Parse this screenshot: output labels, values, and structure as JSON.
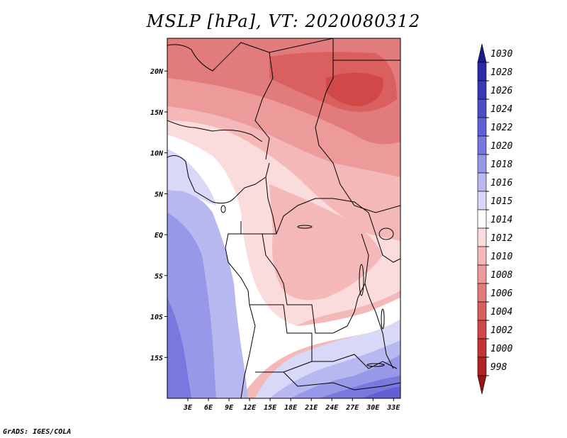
{
  "title": "MSLP [hPa], VT: 2020080312",
  "credit": "GrADS: IGES/COLA",
  "map": {
    "lon_range": [
      0,
      34
    ],
    "lat_range": [
      -20,
      24
    ],
    "lon_ticks": [
      "3E",
      "6E",
      "9E",
      "12E",
      "15E",
      "18E",
      "21E",
      "24E",
      "27E",
      "30E",
      "33E"
    ],
    "lat_ticks": [
      "20N",
      "15N",
      "10N",
      "5N",
      "EQ",
      "5S",
      "10S",
      "15S"
    ],
    "field": "mean sea level pressure",
    "units": "hPa"
  },
  "colorbar": {
    "levels": [
      "1030",
      "1028",
      "1026",
      "1024",
      "1022",
      "1020",
      "1018",
      "1016",
      "1015",
      "1014",
      "1012",
      "1010",
      "1008",
      "1006",
      "1004",
      "1002",
      "1000",
      "998"
    ],
    "colors": [
      "#1a1a8c",
      "#2b2ba8",
      "#3a3ab8",
      "#4d4dc8",
      "#6060d4",
      "#7878de",
      "#9898e8",
      "#b8b8f0",
      "#d8d8f8",
      "#ffffff",
      "#fbdcdc",
      "#f4b8b8",
      "#ec9a9a",
      "#e27c7c",
      "#da6060",
      "#d04848",
      "#c43434",
      "#b02424",
      "#9a1414"
    ]
  }
}
